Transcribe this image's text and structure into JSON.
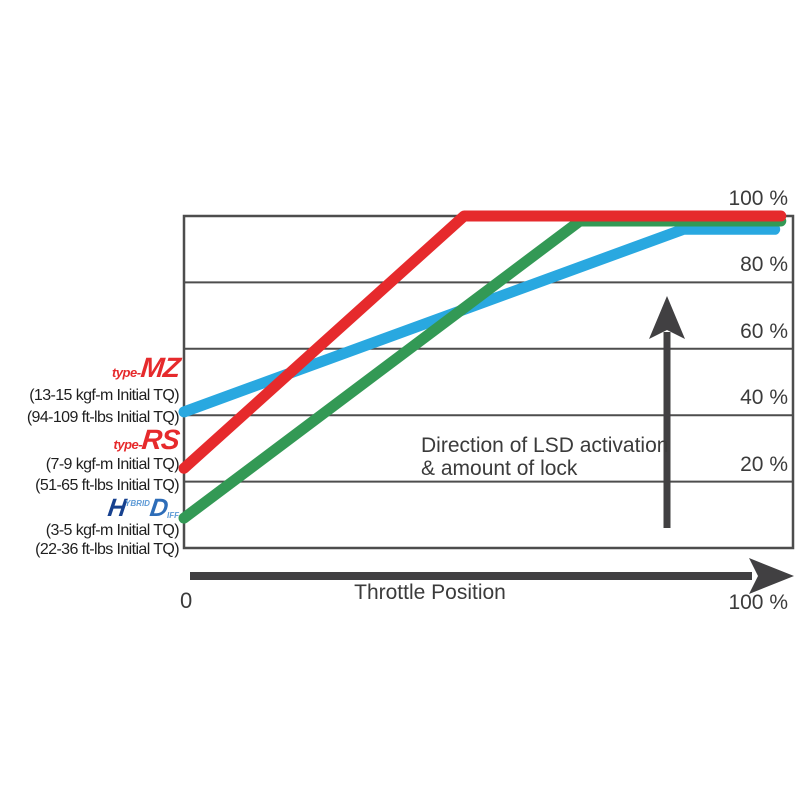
{
  "chart_data": {
    "type": "line",
    "title": "",
    "xlabel": "Throttle Position",
    "x_tick_labels": [
      "0",
      "100 %"
    ],
    "y_tick_labels": [
      "100 %",
      "80 %",
      "60 %",
      "40 %",
      "20 %"
    ],
    "y_gridlines_pct": [
      100,
      80,
      60,
      40,
      20
    ],
    "xlim": [
      0,
      100
    ],
    "ylim": [
      0,
      100
    ],
    "grid": "horizontal",
    "legend_position": "left",
    "annotation": {
      "line1": "Direction of LSD activation",
      "line2": "& amount of lock"
    },
    "series": [
      {
        "key": "type-mz",
        "name": "type-MZ",
        "color": "#29a8e0",
        "points": [
          [
            0,
            41
          ],
          [
            82,
            96
          ],
          [
            97,
            96
          ]
        ]
      },
      {
        "key": "hybrid-diff",
        "name": "HYBRID DIFF",
        "color": "#339955",
        "points": [
          [
            0,
            9
          ],
          [
            65,
            98.5
          ],
          [
            98,
            98.5
          ]
        ]
      },
      {
        "key": "type-rs",
        "name": "type-RS",
        "color": "#e62a2c",
        "points": [
          [
            0,
            24
          ],
          [
            46,
            100
          ],
          [
            98,
            100
          ]
        ]
      }
    ]
  },
  "legend": {
    "mz": {
      "brand_prefix": "type-",
      "brand": "MZ",
      "line1": "(13-15 kgf-m Initial TQ)",
      "line2": "(94-109 ft-lbs Initial TQ)"
    },
    "rs": {
      "brand_prefix": "type-",
      "brand": "RS",
      "line1": "(7-9 kgf-m Initial TQ)",
      "line2": "(51-65 ft-lbs Initial TQ)"
    },
    "hd": {
      "brand_h": "H",
      "brand_h_small": "YBRID",
      "brand_d": "D",
      "brand_d_small": "IFF",
      "line1": "(3-5 kgf-m Initial TQ)",
      "line2": "(22-36 ft-lbs Initial TQ)"
    }
  },
  "colors": {
    "type_mz_line": "#29a8e0",
    "type_rs_line": "#e62a2c",
    "hybrid_diff_line": "#339955",
    "axis_gray": "#4d4d4d",
    "arrow_gray": "#414042",
    "brand_red": "#e62a2c",
    "brand_blue_dark": "#17418f",
    "brand_blue_light": "#5d9ad6",
    "text_dark": "#3b3b3b"
  }
}
